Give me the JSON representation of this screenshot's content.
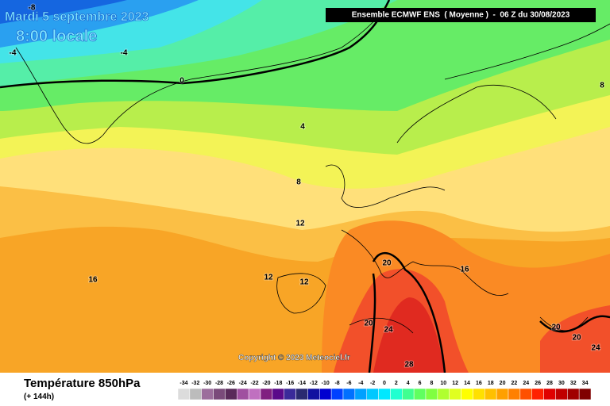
{
  "header": {
    "date": "Mardi 5 septembre 2023",
    "time": "8:00 locale",
    "model": "Ensemble ECMWF ENS  ( Moyenne )  -  06 Z du 30/08/2023"
  },
  "map": {
    "contour_labels": [
      -8,
      -4,
      -4,
      0,
      4,
      8,
      8,
      12,
      12,
      12,
      16,
      16,
      20,
      20,
      24,
      28,
      20,
      20,
      24
    ],
    "copyright": "Copyright © 2023 Meteociel.fr"
  },
  "legend": {
    "title": "Température 850hPa",
    "subtitle": "(+ 144h)",
    "ticks": [
      -34,
      -32,
      -30,
      -28,
      -26,
      -24,
      -22,
      -20,
      -18,
      -16,
      -14,
      -12,
      -10,
      -8,
      -6,
      -4,
      -2,
      0,
      2,
      4,
      6,
      8,
      10,
      12,
      14,
      16,
      18,
      20,
      22,
      24,
      26,
      28,
      30,
      32,
      34
    ],
    "colors": [
      "#dcdcdc",
      "#bcbcbc",
      "#9c6e9c",
      "#7a4a7a",
      "#5a2a5a",
      "#a050a0",
      "#c070c0",
      "#802080",
      "#5a0a8a",
      "#3a2a9a",
      "#2a2a70",
      "#1010a0",
      "#0000d0",
      "#0040ff",
      "#0070ff",
      "#00a0ff",
      "#00c8ff",
      "#00e8ff",
      "#20ffd0",
      "#40ff90",
      "#60ff60",
      "#80ff40",
      "#b0ff30",
      "#e0ff20",
      "#ffff00",
      "#ffe000",
      "#ffc000",
      "#ffa000",
      "#ff8000",
      "#ff5000",
      "#ff2000",
      "#e00000",
      "#c00000",
      "#a00000",
      "#800000"
    ]
  }
}
